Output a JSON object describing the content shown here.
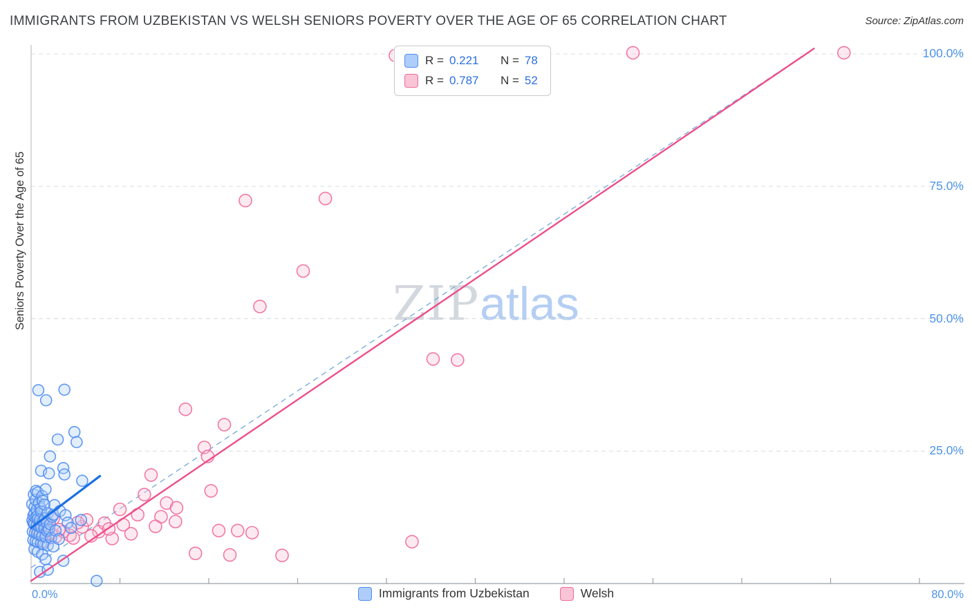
{
  "header": {
    "title": "IMMIGRANTS FROM UZBEKISTAN VS WELSH SENIORS POVERTY OVER THE AGE OF 65 CORRELATION CHART",
    "source": "Source: ZipAtlas.com"
  },
  "watermark": {
    "part1": "ZIP",
    "part2": "atlas"
  },
  "stats_legend": {
    "series": [
      {
        "r_label": "R =",
        "r": "0.221",
        "n_label": "N =",
        "n": "78"
      },
      {
        "r_label": "R =",
        "r": "0.787",
        "n_label": "N =",
        "n": "52"
      }
    ]
  },
  "axes": {
    "y_label": "Seniors Poverty Over the Age of 65",
    "x_min_label": "0.0%",
    "x_max_label": "80.0%",
    "y_ticks": [
      {
        "value": 100,
        "label": "100.0%"
      },
      {
        "value": 75,
        "label": "75.0%"
      },
      {
        "value": 50,
        "label": "50.0%"
      },
      {
        "value": 25,
        "label": "25.0%"
      }
    ]
  },
  "legend": {
    "items": [
      {
        "label": "Immigrants from Uzbekistan"
      },
      {
        "label": "Welsh"
      }
    ]
  },
  "chart_data": {
    "type": "scatter",
    "title": "Immigrants from Uzbekistan vs Welsh Seniors Poverty Over the Age of 65",
    "xlabel": "Immigrants from Uzbekistan (%)",
    "ylabel": "Seniors Poverty Over the Age of 65 (%)",
    "xlim": [
      0,
      80
    ],
    "ylim": [
      0,
      100
    ],
    "x_tick_step": 8,
    "grid": "horizontal-dashed",
    "series": [
      {
        "name": "Immigrants from Uzbekistan",
        "color": "#4f8df0",
        "fill": "#aecdf8",
        "radius": 8,
        "points": [
          [
            0.1,
            15.0
          ],
          [
            0.12,
            11.9
          ],
          [
            0.15,
            9.8
          ],
          [
            0.2,
            12.8
          ],
          [
            0.2,
            11.4
          ],
          [
            0.2,
            8.2
          ],
          [
            0.25,
            16.8
          ],
          [
            0.3,
            14.4
          ],
          [
            0.3,
            11.2
          ],
          [
            0.3,
            13.2
          ],
          [
            0.3,
            6.5
          ],
          [
            0.35,
            9.6
          ],
          [
            0.4,
            15.8
          ],
          [
            0.4,
            12.5
          ],
          [
            0.4,
            8.0
          ],
          [
            0.45,
            17.5
          ],
          [
            0.5,
            13.9
          ],
          [
            0.5,
            11.0
          ],
          [
            0.55,
            9.4
          ],
          [
            0.55,
            12.7
          ],
          [
            0.6,
            17.2
          ],
          [
            0.6,
            12.2
          ],
          [
            0.6,
            7.8
          ],
          [
            0.6,
            6.0
          ],
          [
            0.65,
            36.5
          ],
          [
            0.7,
            15.2
          ],
          [
            0.7,
            10.8
          ],
          [
            0.75,
            9.2
          ],
          [
            0.8,
            12.0
          ],
          [
            0.8,
            2.2
          ],
          [
            0.85,
            14.2
          ],
          [
            0.9,
            21.3
          ],
          [
            0.9,
            13.6
          ],
          [
            0.9,
            10.6
          ],
          [
            0.9,
            7.6
          ],
          [
            1.0,
            16.5
          ],
          [
            1.0,
            9.0
          ],
          [
            1.0,
            5.5
          ],
          [
            1.05,
            15.6
          ],
          [
            1.1,
            11.8
          ],
          [
            1.1,
            7.4
          ],
          [
            1.2,
            14.9
          ],
          [
            1.2,
            10.4
          ],
          [
            1.25,
            12.3
          ],
          [
            1.3,
            17.8
          ],
          [
            1.3,
            8.8
          ],
          [
            1.3,
            4.6
          ],
          [
            1.35,
            34.6
          ],
          [
            1.4,
            11.6
          ],
          [
            1.45,
            9.9
          ],
          [
            1.5,
            13.3
          ],
          [
            1.5,
            7.2
          ],
          [
            1.5,
            2.6
          ],
          [
            1.6,
            20.8
          ],
          [
            1.6,
            10.2
          ],
          [
            1.7,
            24.0
          ],
          [
            1.7,
            11.2
          ],
          [
            1.8,
            8.6
          ],
          [
            1.9,
            12.6
          ],
          [
            2.0,
            13.0
          ],
          [
            2.0,
            7.0
          ],
          [
            2.1,
            14.8
          ],
          [
            2.2,
            10.0
          ],
          [
            2.4,
            27.2
          ],
          [
            2.5,
            8.4
          ],
          [
            2.6,
            13.7
          ],
          [
            2.9,
            21.8
          ],
          [
            2.9,
            4.3
          ],
          [
            3.0,
            36.6
          ],
          [
            3.0,
            20.6
          ],
          [
            3.1,
            12.9
          ],
          [
            3.3,
            11.5
          ],
          [
            3.6,
            10.5
          ],
          [
            3.9,
            28.6
          ],
          [
            4.1,
            26.7
          ],
          [
            4.5,
            12.0
          ],
          [
            4.6,
            19.4
          ],
          [
            5.9,
            0.5
          ]
        ]
      },
      {
        "name": "Welsh",
        "color": "#ef6a9b",
        "fill": "#f9c4d6",
        "radius": 9,
        "points": [
          [
            32.8,
            99.7
          ],
          [
            54.2,
            100.2
          ],
          [
            73.2,
            100.2
          ],
          [
            19.3,
            72.3
          ],
          [
            26.5,
            72.7
          ],
          [
            24.5,
            59.0
          ],
          [
            20.6,
            52.3
          ],
          [
            36.2,
            42.4
          ],
          [
            38.4,
            42.2
          ],
          [
            13.9,
            32.9
          ],
          [
            17.4,
            30.0
          ],
          [
            15.6,
            25.7
          ],
          [
            15.9,
            24.0
          ],
          [
            10.8,
            20.5
          ],
          [
            16.2,
            17.5
          ],
          [
            10.2,
            16.8
          ],
          [
            12.2,
            15.2
          ],
          [
            13.1,
            14.3
          ],
          [
            8.0,
            14.0
          ],
          [
            9.6,
            13.0
          ],
          [
            13.0,
            11.7
          ],
          [
            11.7,
            12.6
          ],
          [
            8.3,
            11.1
          ],
          [
            9.0,
            9.4
          ],
          [
            7.3,
            8.5
          ],
          [
            6.1,
            9.8
          ],
          [
            5.4,
            9.0
          ],
          [
            4.6,
            10.7
          ],
          [
            3.5,
            9.1
          ],
          [
            2.9,
            9.8
          ],
          [
            2.2,
            8.8
          ],
          [
            1.8,
            9.5
          ],
          [
            1.2,
            8.0
          ],
          [
            0.8,
            9.2
          ],
          [
            0.5,
            10.5
          ],
          [
            1.5,
            11.0
          ],
          [
            2.5,
            10.2
          ],
          [
            3.8,
            8.6
          ],
          [
            5.0,
            12.0
          ],
          [
            6.6,
            11.4
          ],
          [
            16.9,
            10.0
          ],
          [
            18.6,
            10.0
          ],
          [
            19.9,
            9.6
          ],
          [
            14.8,
            5.7
          ],
          [
            17.9,
            5.4
          ],
          [
            22.6,
            5.3
          ],
          [
            34.3,
            7.9
          ],
          [
            11.2,
            10.8
          ],
          [
            7.0,
            10.3
          ],
          [
            4.2,
            11.5
          ],
          [
            2.0,
            12.3
          ],
          [
            0.9,
            11.8
          ]
        ]
      }
    ],
    "trend_lines": [
      {
        "name": "uzbekistan-fit-extended",
        "style": "dashed",
        "color": "#7badde",
        "width": 1.4,
        "from": [
          0,
          3
        ],
        "to": [
          70.5,
          101
        ]
      },
      {
        "name": "welsh-fit",
        "style": "solid",
        "color": "#ec4e8a",
        "width": 2.4,
        "from": [
          0,
          0.5
        ],
        "to": [
          70.5,
          101
        ]
      },
      {
        "name": "uzbekistan-fit",
        "style": "solid",
        "color": "#1a6fe0",
        "width": 3.2,
        "from": [
          0,
          10.5
        ],
        "to": [
          6.2,
          20.3
        ]
      }
    ]
  }
}
